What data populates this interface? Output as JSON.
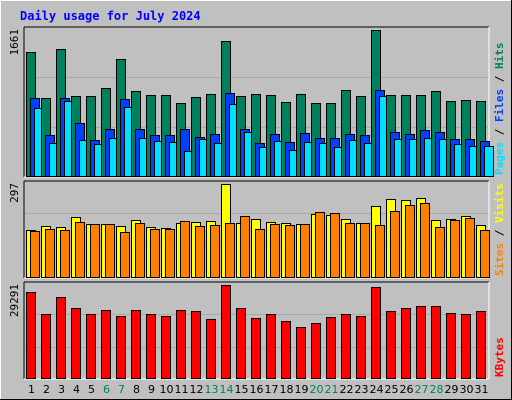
{
  "title": "Daily usage for July 2024",
  "colors": {
    "background": "#c0c0c0",
    "border_light": "#ffffff",
    "border_dark": "#808080",
    "title": "#0000ff",
    "hits": "#00805c",
    "files": "#0040ff",
    "pages": "#00e0ff",
    "visits": "#ffff00",
    "sites": "#ff8000",
    "kbytes": "#ff0000",
    "weekend": "#00805c",
    "weekday": "#000000"
  },
  "chart_data": [
    {
      "type": "bar",
      "panel": "hits-files-pages",
      "y_max_label": "1661",
      "ylim": [
        0,
        1661
      ],
      "legend": [
        "Pages",
        "Files",
        "Hits"
      ],
      "categories": [
        "1",
        "2",
        "3",
        "4",
        "5",
        "6",
        "7",
        "8",
        "9",
        "10",
        "11",
        "12",
        "13",
        "14",
        "15",
        "16",
        "17",
        "18",
        "19",
        "20",
        "21",
        "22",
        "23",
        "24",
        "25",
        "26",
        "27",
        "28",
        "29",
        "30",
        "31"
      ],
      "weekend_days": [
        "6",
        "7",
        "13",
        "14",
        "20",
        "21",
        "27",
        "28"
      ],
      "series": [
        {
          "name": "Hits",
          "values": [
            1407,
            898,
            1442,
            914,
            916,
            1011,
            1336,
            972,
            930,
            930,
            840,
            899,
            940,
            1532,
            918,
            935,
            930,
            845,
            942,
            838,
            840,
            983,
            917,
            1661,
            926,
            926,
            926,
            967,
            860,
            874,
            857
          ]
        },
        {
          "name": "Files",
          "values": [
            889,
            480,
            898,
            612,
            416,
            540,
            876,
            545,
            475,
            480,
            548,
            450,
            490,
            950,
            540,
            380,
            488,
            390,
            497,
            440,
            440,
            490,
            470,
            985,
            512,
            488,
            529,
            511,
            430,
            425,
            405
          ]
        },
        {
          "name": "Pages",
          "values": [
            783,
            388,
            862,
            414,
            372,
            436,
            795,
            445,
            410,
            400,
            290,
            430,
            380,
            830,
            507,
            344,
            407,
            305,
            399,
            380,
            340,
            419,
            388,
            913,
            430,
            430,
            440,
            433,
            370,
            350,
            350
          ]
        }
      ]
    },
    {
      "type": "bar",
      "panel": "visits-sites",
      "y_max_label": "297",
      "ylim": [
        0,
        297
      ],
      "legend": [
        "Sites",
        "Visits"
      ],
      "categories": [
        "1",
        "2",
        "3",
        "4",
        "5",
        "6",
        "7",
        "8",
        "9",
        "10",
        "11",
        "12",
        "13",
        "14",
        "15",
        "16",
        "17",
        "18",
        "19",
        "20",
        "21",
        "22",
        "23",
        "24",
        "25",
        "26",
        "27",
        "28",
        "29",
        "30",
        "31"
      ],
      "series": [
        {
          "name": "Visits",
          "values": [
            152,
            165,
            160,
            193,
            172,
            172,
            165,
            184,
            160,
            159,
            174,
            177,
            179,
            297,
            173,
            185,
            178,
            173,
            172,
            203,
            199,
            186,
            175,
            228,
            250,
            245,
            252,
            184,
            186,
            196,
            166
          ]
        },
        {
          "name": "Sites",
          "values": [
            149,
            155,
            152,
            177,
            172,
            172,
            145,
            173,
            155,
            155,
            180,
            165,
            169,
            175,
            195,
            156,
            172,
            169,
            172,
            208,
            205,
            174,
            174,
            168,
            213,
            232,
            237,
            160,
            184,
            190,
            153
          ]
        }
      ]
    },
    {
      "type": "bar",
      "panel": "kbytes",
      "y_max_label": "29291",
      "ylim": [
        0,
        29291
      ],
      "legend": [
        "KBytes"
      ],
      "categories": [
        "1",
        "2",
        "3",
        "4",
        "5",
        "6",
        "7",
        "8",
        "9",
        "10",
        "11",
        "12",
        "13",
        "14",
        "15",
        "16",
        "17",
        "18",
        "19",
        "20",
        "21",
        "22",
        "23",
        "24",
        "25",
        "26",
        "27",
        "28",
        "29",
        "30",
        "31"
      ],
      "series": [
        {
          "name": "KBytes",
          "values": [
            27000,
            20200,
            25700,
            22000,
            20200,
            21600,
            19600,
            21600,
            20200,
            19600,
            21600,
            21300,
            18600,
            29291,
            22000,
            18900,
            20200,
            18100,
            16200,
            17500,
            19300,
            20200,
            19600,
            28700,
            21300,
            22000,
            22700,
            22700,
            20600,
            20200,
            21300
          ]
        }
      ]
    }
  ]
}
